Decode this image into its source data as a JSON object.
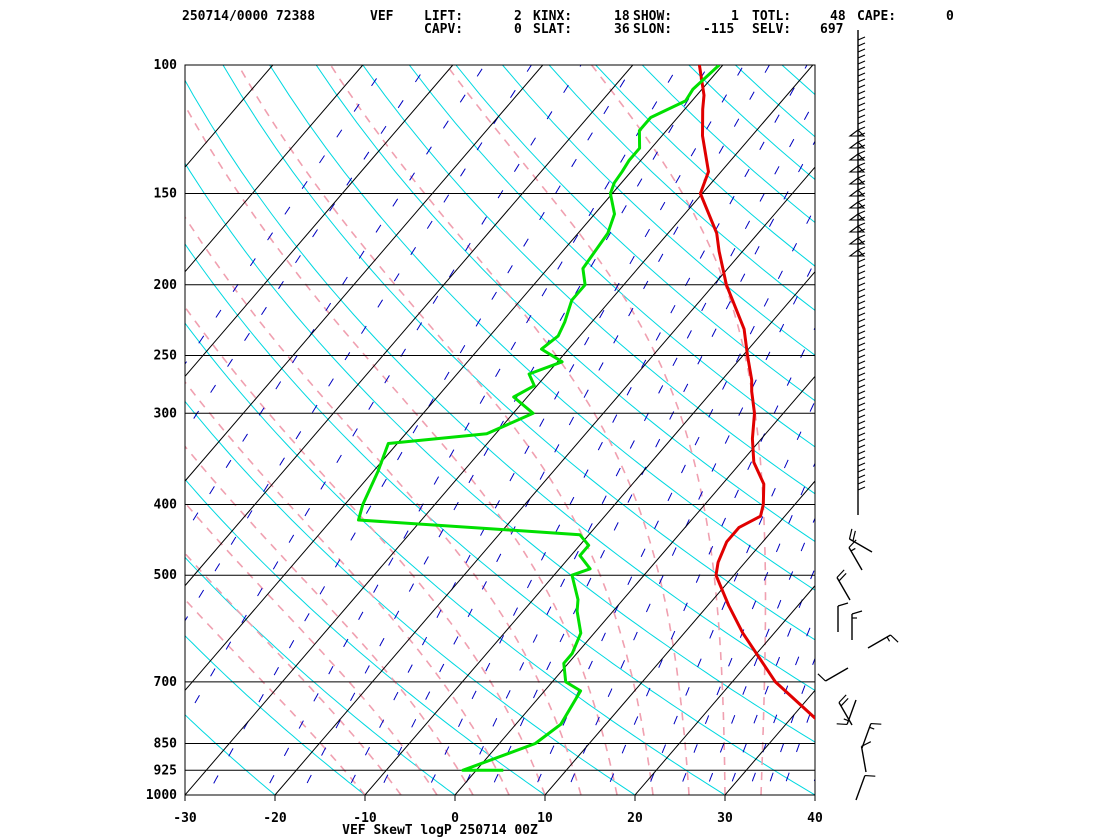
{
  "header": {
    "row1": [
      {
        "text": "250714/0000 72388",
        "left": 0
      },
      {
        "text": "VEF",
        "left": 0
      },
      {
        "text": "LIFT:",
        "left": 0
      },
      {
        "text": "2",
        "left": 0
      },
      {
        "text": "KINX:",
        "left": 0
      },
      {
        "text": "18",
        "left": 0
      },
      {
        "text": "SHOW:",
        "left": 0
      },
      {
        "text": "1",
        "left": 0
      },
      {
        "text": "TOTL:",
        "left": 0
      },
      {
        "text": "48",
        "left": 0
      },
      {
        "text": "CAPE:",
        "left": 0
      },
      {
        "text": "0",
        "left": 0
      }
    ],
    "row2": [
      {
        "text": "CAPV:"
      },
      {
        "text": "0"
      },
      {
        "text": "SLAT:"
      },
      {
        "text": "36"
      },
      {
        "text": "SLON:"
      },
      {
        "text": "-115"
      },
      {
        "text": "SELV:"
      },
      {
        "text": "697"
      }
    ]
  },
  "chart_data": {
    "type": "line",
    "title": "VEF SkewT logP 250714 00Z",
    "station": "VEF",
    "x_ticks": [
      -30,
      -20,
      -10,
      0,
      10,
      20,
      30,
      40
    ],
    "xlim": [
      -30,
      40
    ],
    "y_log_pressure": true,
    "ylim": [
      1000,
      100
    ],
    "y_ticks": [
      100,
      150,
      200,
      250,
      300,
      400,
      500,
      700,
      850,
      925,
      1000
    ],
    "background_lines": {
      "isobars_color": "#000000",
      "isotherms_color": "#000000",
      "dry_adiabats_color": "#00d8e0",
      "moist_adiabats_color": "#f0a0b0",
      "mixing_ratio_color": "#0000c0"
    },
    "series": [
      {
        "name": "Temperature",
        "color": "#e00000",
        "points": [
          {
            "p": 850,
            "t": 40.0
          },
          {
            "p": 800,
            "t": 34.0
          },
          {
            "p": 700,
            "t": 24.8
          },
          {
            "p": 600,
            "t": 16.5
          },
          {
            "p": 550,
            "t": 12.3
          },
          {
            "p": 500,
            "t": 8.0
          },
          {
            "p": 480,
            "t": 7.0
          },
          {
            "p": 450,
            "t": 6.0
          },
          {
            "p": 430,
            "t": 6.0
          },
          {
            "p": 415,
            "t": 7.3
          },
          {
            "p": 400,
            "t": 6.5
          },
          {
            "p": 375,
            "t": 4.6
          },
          {
            "p": 350,
            "t": 1.4
          },
          {
            "p": 325,
            "t": -1.0
          },
          {
            "p": 300,
            "t": -3.2
          },
          {
            "p": 280,
            "t": -5.6
          },
          {
            "p": 270,
            "t": -6.7
          },
          {
            "p": 250,
            "t": -9.5
          },
          {
            "p": 230,
            "t": -12.4
          },
          {
            "p": 200,
            "t": -18.6
          },
          {
            "p": 180,
            "t": -22.6
          },
          {
            "p": 170,
            "t": -24.6
          },
          {
            "p": 150,
            "t": -30.2
          },
          {
            "p": 140,
            "t": -31.4
          },
          {
            "p": 125,
            "t": -35.5
          },
          {
            "p": 115,
            "t": -38.0
          },
          {
            "p": 110,
            "t": -39.2
          },
          {
            "p": 100,
            "t": -42.6
          }
        ]
      },
      {
        "name": "Dewpoint",
        "color": "#00e000",
        "points": [
          {
            "p": 925,
            "t": 3.0
          },
          {
            "p": 925,
            "t": -1.5
          },
          {
            "p": 850,
            "t": 4.0
          },
          {
            "p": 800,
            "t": 5.0
          },
          {
            "p": 720,
            "t": 4.0
          },
          {
            "p": 700,
            "t": 1.5
          },
          {
            "p": 660,
            "t": -0.5
          },
          {
            "p": 640,
            "t": -0.5
          },
          {
            "p": 600,
            "t": -1.5
          },
          {
            "p": 560,
            "t": -4.0
          },
          {
            "p": 540,
            "t": -5.0
          },
          {
            "p": 500,
            "t": -8.0
          },
          {
            "p": 490,
            "t": -6.6
          },
          {
            "p": 470,
            "t": -9.0
          },
          {
            "p": 455,
            "t": -9.0
          },
          {
            "p": 440,
            "t": -11.0
          },
          {
            "p": 420,
            "t": -37.0
          },
          {
            "p": 400,
            "t": -38.0
          },
          {
            "p": 360,
            "t": -39.5
          },
          {
            "p": 330,
            "t": -41.0
          },
          {
            "p": 320,
            "t": -31.0
          },
          {
            "p": 300,
            "t": -27.8
          },
          {
            "p": 285,
            "t": -31.5
          },
          {
            "p": 275,
            "t": -30.3
          },
          {
            "p": 265,
            "t": -32.0
          },
          {
            "p": 255,
            "t": -29.5
          },
          {
            "p": 245,
            "t": -33.0
          },
          {
            "p": 235,
            "t": -32.4
          },
          {
            "p": 225,
            "t": -33.0
          },
          {
            "p": 210,
            "t": -34.3
          },
          {
            "p": 200,
            "t": -34.3
          },
          {
            "p": 190,
            "t": -36.1
          },
          {
            "p": 170,
            "t": -36.7
          },
          {
            "p": 160,
            "t": -37.8
          },
          {
            "p": 150,
            "t": -40.2
          },
          {
            "p": 145,
            "t": -40.8
          },
          {
            "p": 140,
            "t": -41.0
          },
          {
            "p": 135,
            "t": -41.3
          },
          {
            "p": 130,
            "t": -41.3
          },
          {
            "p": 123,
            "t": -43.0
          },
          {
            "p": 118,
            "t": -43.0
          },
          {
            "p": 112,
            "t": -40.7
          },
          {
            "p": 108,
            "t": -41.0
          },
          {
            "p": 100,
            "t": -40.4
          }
        ]
      }
    ]
  }
}
